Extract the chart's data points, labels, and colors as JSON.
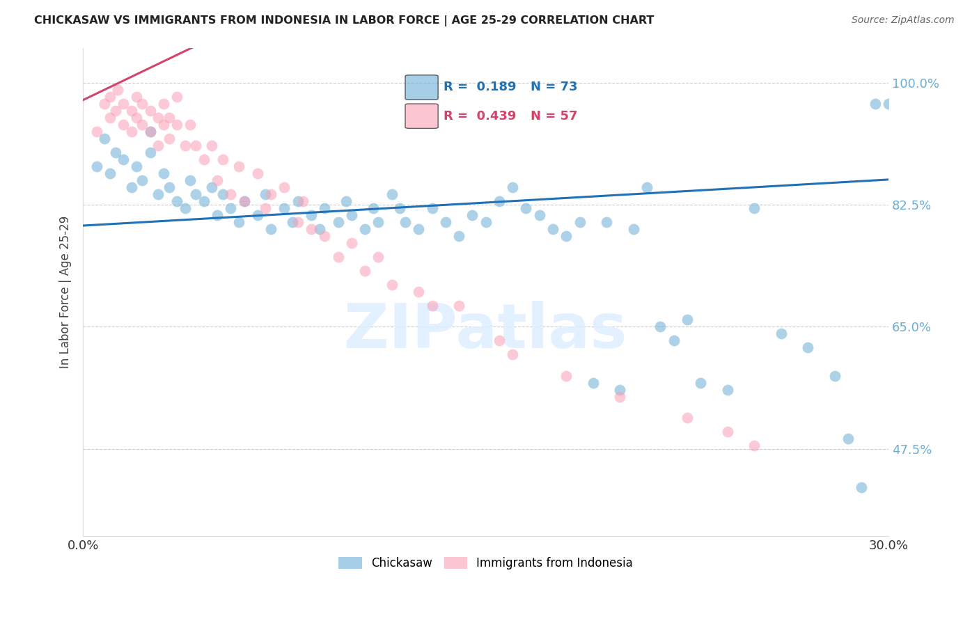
{
  "title": "CHICKASAW VS IMMIGRANTS FROM INDONESIA IN LABOR FORCE | AGE 25-29 CORRELATION CHART",
  "source_text": "Source: ZipAtlas.com",
  "ylabel": "In Labor Force | Age 25-29",
  "xlim": [
    0.0,
    0.3
  ],
  "ylim": [
    0.35,
    1.05
  ],
  "yticks": [
    0.475,
    0.65,
    0.825,
    1.0
  ],
  "ytick_labels": [
    "47.5%",
    "65.0%",
    "82.5%",
    "100.0%"
  ],
  "xticks": [
    0.0,
    0.05,
    0.1,
    0.15,
    0.2,
    0.25,
    0.3
  ],
  "xtick_labels": [
    "0.0%",
    "",
    "",
    "",
    "",
    "",
    "30.0%"
  ],
  "blue_color": "#6BAED6",
  "pink_color": "#FA9FB5",
  "blue_line_color": "#2171B5",
  "pink_line_color": "#D4436A",
  "legend_blue_r": "0.189",
  "legend_blue_n": "73",
  "legend_pink_r": "0.439",
  "legend_pink_n": "57",
  "watermark": "ZIPatlas",
  "blue_scatter_x": [
    0.005,
    0.008,
    0.01,
    0.012,
    0.015,
    0.018,
    0.02,
    0.022,
    0.025,
    0.025,
    0.028,
    0.03,
    0.032,
    0.035,
    0.038,
    0.04,
    0.042,
    0.045,
    0.048,
    0.05,
    0.052,
    0.055,
    0.058,
    0.06,
    0.065,
    0.068,
    0.07,
    0.075,
    0.078,
    0.08,
    0.085,
    0.088,
    0.09,
    0.095,
    0.098,
    0.1,
    0.105,
    0.108,
    0.11,
    0.115,
    0.118,
    0.12,
    0.125,
    0.13,
    0.135,
    0.14,
    0.145,
    0.15,
    0.155,
    0.16,
    0.165,
    0.17,
    0.175,
    0.18,
    0.185,
    0.19,
    0.195,
    0.2,
    0.205,
    0.21,
    0.215,
    0.22,
    0.225,
    0.23,
    0.24,
    0.25,
    0.26,
    0.27,
    0.28,
    0.285,
    0.29,
    0.295,
    0.3
  ],
  "blue_scatter_y": [
    0.88,
    0.92,
    0.87,
    0.9,
    0.89,
    0.85,
    0.88,
    0.86,
    0.9,
    0.93,
    0.84,
    0.87,
    0.85,
    0.83,
    0.82,
    0.86,
    0.84,
    0.83,
    0.85,
    0.81,
    0.84,
    0.82,
    0.8,
    0.83,
    0.81,
    0.84,
    0.79,
    0.82,
    0.8,
    0.83,
    0.81,
    0.79,
    0.82,
    0.8,
    0.83,
    0.81,
    0.79,
    0.82,
    0.8,
    0.84,
    0.82,
    0.8,
    0.79,
    0.82,
    0.8,
    0.78,
    0.81,
    0.8,
    0.83,
    0.85,
    0.82,
    0.81,
    0.79,
    0.78,
    0.8,
    0.57,
    0.8,
    0.56,
    0.79,
    0.85,
    0.65,
    0.63,
    0.66,
    0.57,
    0.56,
    0.82,
    0.64,
    0.62,
    0.58,
    0.49,
    0.42,
    0.97,
    0.97
  ],
  "pink_scatter_x": [
    0.005,
    0.008,
    0.01,
    0.01,
    0.012,
    0.013,
    0.015,
    0.015,
    0.018,
    0.018,
    0.02,
    0.02,
    0.022,
    0.022,
    0.025,
    0.025,
    0.028,
    0.028,
    0.03,
    0.03,
    0.032,
    0.032,
    0.035,
    0.035,
    0.038,
    0.04,
    0.042,
    0.045,
    0.048,
    0.05,
    0.052,
    0.055,
    0.058,
    0.06,
    0.065,
    0.068,
    0.07,
    0.075,
    0.08,
    0.082,
    0.085,
    0.09,
    0.095,
    0.1,
    0.105,
    0.11,
    0.115,
    0.125,
    0.13,
    0.14,
    0.155,
    0.16,
    0.18,
    0.2,
    0.225,
    0.24,
    0.25
  ],
  "pink_scatter_y": [
    0.93,
    0.97,
    0.98,
    0.95,
    0.96,
    0.99,
    0.97,
    0.94,
    0.96,
    0.93,
    0.98,
    0.95,
    0.94,
    0.97,
    0.93,
    0.96,
    0.95,
    0.91,
    0.94,
    0.97,
    0.92,
    0.95,
    0.94,
    0.98,
    0.91,
    0.94,
    0.91,
    0.89,
    0.91,
    0.86,
    0.89,
    0.84,
    0.88,
    0.83,
    0.87,
    0.82,
    0.84,
    0.85,
    0.8,
    0.83,
    0.79,
    0.78,
    0.75,
    0.77,
    0.73,
    0.75,
    0.71,
    0.7,
    0.68,
    0.68,
    0.63,
    0.61,
    0.58,
    0.55,
    0.52,
    0.5,
    0.48
  ],
  "blue_trend_x": [
    0.0,
    0.3
  ],
  "blue_trend_y_intercept": 0.795,
  "blue_trend_slope": 0.22,
  "pink_trend_x": [
    0.0,
    0.245
  ],
  "pink_trend_y_intercept": 0.975,
  "pink_trend_slope": 1.85
}
